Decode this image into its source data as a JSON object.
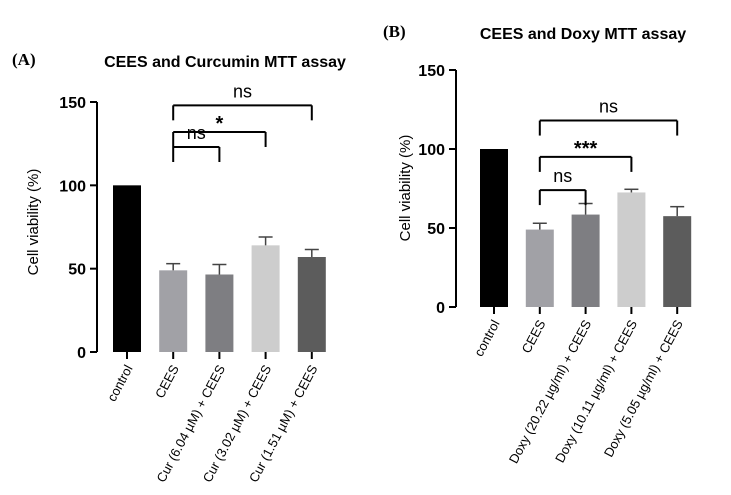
{
  "chart_data": [
    {
      "type": "bar",
      "panel_label": "(A)",
      "title": "CEES and Curcumin MTT assay",
      "ylabel": "Cell viability (%)",
      "xlabel": "",
      "ylim": [
        0,
        150
      ],
      "yticks": [
        0,
        50,
        100,
        150
      ],
      "categories": [
        "control",
        "CEES",
        "Cur (6.04 µM) + CEES",
        "Cur (3.02 µM) + CEES",
        "Cur (1.51 µM) + CEES"
      ],
      "values": [
        100,
        49,
        46.5,
        64,
        57
      ],
      "errors": [
        0,
        4,
        6,
        5,
        4.5
      ],
      "bar_colors": [
        "#000000",
        "#a1a1a6",
        "#7e7e82",
        "#cdcdcd",
        "#5c5c5c"
      ],
      "comparisons": [
        {
          "from": 1,
          "to": 2,
          "label": "ns",
          "y": 123
        },
        {
          "from": 1,
          "to": 3,
          "label": "*",
          "y": 132
        },
        {
          "from": 1,
          "to": 4,
          "label": "ns",
          "y": 148
        }
      ]
    },
    {
      "type": "bar",
      "panel_label": "(B)",
      "title": "CEES and Doxy MTT assay",
      "ylabel": "Cell viability (%)",
      "xlabel": "",
      "ylim": [
        0,
        150
      ],
      "yticks": [
        0,
        50,
        100,
        150
      ],
      "categories": [
        "control",
        "CEES",
        "Doxy (20.22 µg/ml) + CEES",
        "Doxy (10.11 µg/ml) + CEES",
        "Doxy (5.05 µg/ml) + CEES"
      ],
      "values": [
        100,
        49,
        58.5,
        72.5,
        57.5
      ],
      "errors": [
        0,
        4,
        7,
        2,
        6
      ],
      "bar_colors": [
        "#000000",
        "#a1a1a6",
        "#7e7e82",
        "#cdcdcd",
        "#5c5c5c"
      ],
      "comparisons": [
        {
          "from": 1,
          "to": 2,
          "label": "ns",
          "y": 74
        },
        {
          "from": 1,
          "to": 3,
          "label": "***",
          "y": 95
        },
        {
          "from": 1,
          "to": 4,
          "label": "ns",
          "y": 118
        }
      ]
    }
  ]
}
